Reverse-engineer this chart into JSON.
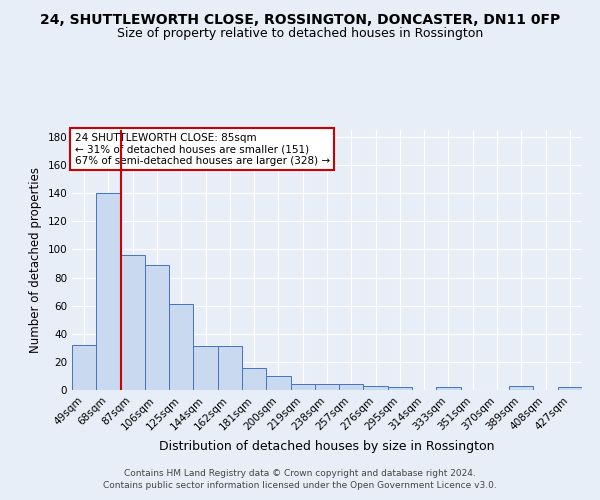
{
  "title": "24, SHUTTLEWORTH CLOSE, ROSSINGTON, DONCASTER, DN11 0FP",
  "subtitle": "Size of property relative to detached houses in Rossington",
  "xlabel": "Distribution of detached houses by size in Rossington",
  "ylabel": "Number of detached properties",
  "categories": [
    "49sqm",
    "68sqm",
    "87sqm",
    "106sqm",
    "125sqm",
    "144sqm",
    "162sqm",
    "181sqm",
    "200sqm",
    "219sqm",
    "238sqm",
    "257sqm",
    "276sqm",
    "295sqm",
    "314sqm",
    "333sqm",
    "351sqm",
    "370sqm",
    "389sqm",
    "408sqm",
    "427sqm"
  ],
  "values": [
    32,
    140,
    96,
    89,
    61,
    31,
    31,
    16,
    10,
    4,
    4,
    4,
    3,
    2,
    0,
    2,
    0,
    0,
    3,
    0,
    2
  ],
  "bar_color": "#c8d9f0",
  "bar_edge_color": "#4472c4",
  "vline_index": 2,
  "vline_color": "#cc0000",
  "annotation_text": "24 SHUTTLEWORTH CLOSE: 85sqm\n← 31% of detached houses are smaller (151)\n67% of semi-detached houses are larger (328) →",
  "annotation_box_color": "#ffffff",
  "annotation_box_edge_color": "#cc0000",
  "background_color": "#e8eef8",
  "grid_color": "#ffffff",
  "footer_text": "Contains HM Land Registry data © Crown copyright and database right 2024.\nContains public sector information licensed under the Open Government Licence v3.0.",
  "ylim": [
    0,
    185
  ],
  "title_fontsize": 10,
  "subtitle_fontsize": 9,
  "ylabel_fontsize": 8.5,
  "xlabel_fontsize": 9,
  "tick_fontsize": 7.5,
  "footer_fontsize": 6.5,
  "annotation_fontsize": 7.5
}
